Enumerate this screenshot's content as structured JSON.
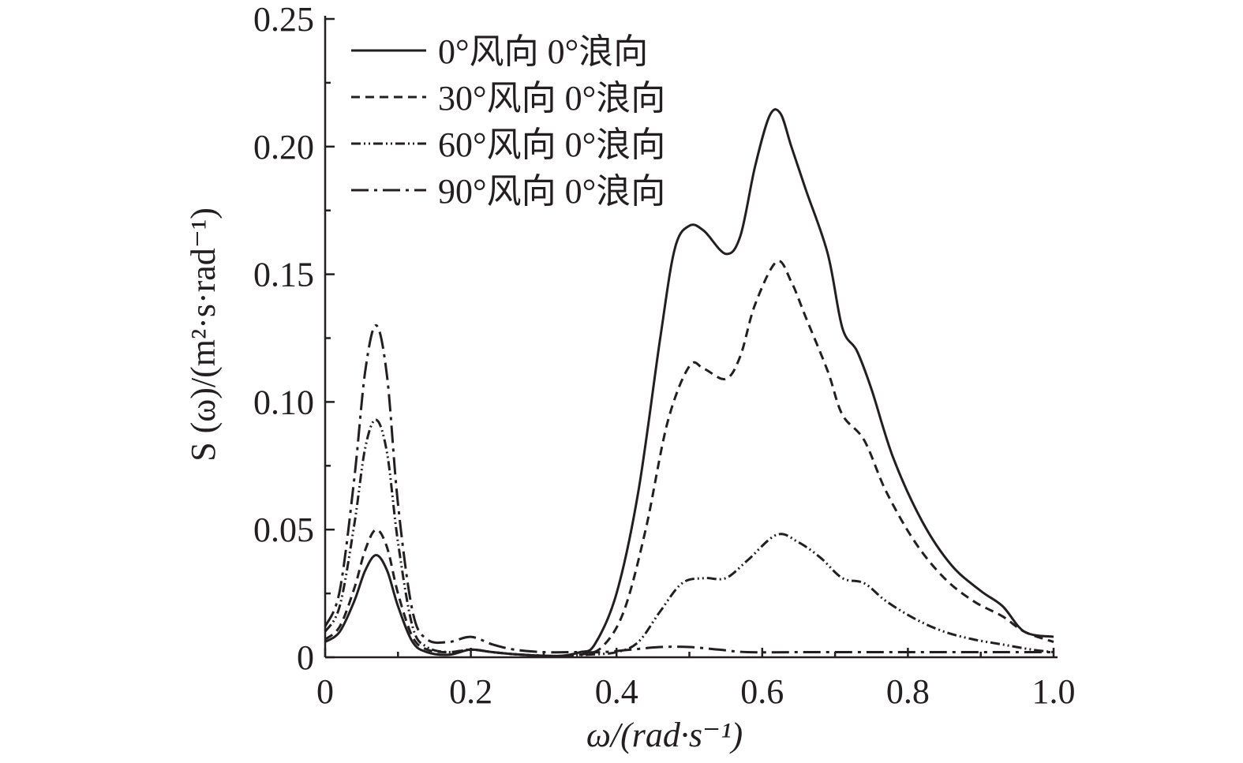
{
  "chart_data": {
    "type": "line",
    "xlabel": "ω/(rad·s⁻¹)",
    "ylabel": "S (ω)/(m²·s·rad⁻¹)",
    "xlim": [
      0,
      1.0
    ],
    "ylim": [
      0,
      0.25
    ],
    "x_ticks": [
      "0",
      "0.2",
      "0.4",
      "0.6",
      "0.8",
      "1.0"
    ],
    "y_ticks": [
      "0",
      "0.05",
      "0.10",
      "0.15",
      "0.20",
      "0.25"
    ],
    "grid": false,
    "legend_position": "top-left",
    "series": [
      {
        "name": "0°风向 0°浪向",
        "style": "solid",
        "points": [
          [
            0,
            0.006
          ],
          [
            0.02,
            0.01
          ],
          [
            0.04,
            0.022
          ],
          [
            0.055,
            0.034
          ],
          [
            0.07,
            0.04
          ],
          [
            0.085,
            0.034
          ],
          [
            0.1,
            0.02
          ],
          [
            0.12,
            0.006
          ],
          [
            0.14,
            0.002
          ],
          [
            0.17,
            0.001
          ],
          [
            0.2,
            0.003
          ],
          [
            0.23,
            0.002
          ],
          [
            0.27,
            0.001
          ],
          [
            0.32,
            0.0005
          ],
          [
            0.35,
            0.002
          ],
          [
            0.37,
            0.005
          ],
          [
            0.4,
            0.025
          ],
          [
            0.43,
            0.065
          ],
          [
            0.46,
            0.125
          ],
          [
            0.48,
            0.16
          ],
          [
            0.5,
            0.169
          ],
          [
            0.52,
            0.167
          ],
          [
            0.55,
            0.158
          ],
          [
            0.57,
            0.165
          ],
          [
            0.59,
            0.192
          ],
          [
            0.61,
            0.212
          ],
          [
            0.625,
            0.213
          ],
          [
            0.64,
            0.2
          ],
          [
            0.66,
            0.183
          ],
          [
            0.69,
            0.158
          ],
          [
            0.71,
            0.129
          ],
          [
            0.73,
            0.12
          ],
          [
            0.75,
            0.105
          ],
          [
            0.78,
            0.078
          ],
          [
            0.82,
            0.053
          ],
          [
            0.86,
            0.036
          ],
          [
            0.9,
            0.026
          ],
          [
            0.93,
            0.02
          ],
          [
            0.96,
            0.01
          ],
          [
            1.0,
            0.008
          ]
        ]
      },
      {
        "name": "30°风向 0°浪向",
        "style": "dashed",
        "points": [
          [
            0,
            0.007
          ],
          [
            0.02,
            0.012
          ],
          [
            0.04,
            0.027
          ],
          [
            0.055,
            0.042
          ],
          [
            0.07,
            0.05
          ],
          [
            0.085,
            0.043
          ],
          [
            0.1,
            0.025
          ],
          [
            0.12,
            0.008
          ],
          [
            0.14,
            0.003
          ],
          [
            0.17,
            0.002
          ],
          [
            0.2,
            0.003
          ],
          [
            0.23,
            0.002
          ],
          [
            0.27,
            0.001
          ],
          [
            0.32,
            0.0005
          ],
          [
            0.35,
            0.001
          ],
          [
            0.38,
            0.004
          ],
          [
            0.41,
            0.018
          ],
          [
            0.44,
            0.05
          ],
          [
            0.47,
            0.092
          ],
          [
            0.5,
            0.114
          ],
          [
            0.52,
            0.113
          ],
          [
            0.55,
            0.109
          ],
          [
            0.57,
            0.118
          ],
          [
            0.59,
            0.138
          ],
          [
            0.62,
            0.155
          ],
          [
            0.64,
            0.147
          ],
          [
            0.66,
            0.133
          ],
          [
            0.69,
            0.112
          ],
          [
            0.71,
            0.095
          ],
          [
            0.74,
            0.085
          ],
          [
            0.77,
            0.065
          ],
          [
            0.81,
            0.045
          ],
          [
            0.85,
            0.031
          ],
          [
            0.89,
            0.022
          ],
          [
            0.93,
            0.016
          ],
          [
            0.96,
            0.01
          ],
          [
            1.0,
            0.006
          ]
        ]
      },
      {
        "name": "60°风向 0°浪向",
        "style": "dash-dot-dot",
        "points": [
          [
            0,
            0.01
          ],
          [
            0.02,
            0.02
          ],
          [
            0.04,
            0.052
          ],
          [
            0.055,
            0.082
          ],
          [
            0.07,
            0.093
          ],
          [
            0.085,
            0.08
          ],
          [
            0.1,
            0.045
          ],
          [
            0.12,
            0.012
          ],
          [
            0.14,
            0.004
          ],
          [
            0.17,
            0.002
          ],
          [
            0.2,
            0.003
          ],
          [
            0.23,
            0.002
          ],
          [
            0.27,
            0.001
          ],
          [
            0.32,
            0.0005
          ],
          [
            0.36,
            0.001
          ],
          [
            0.4,
            0.002
          ],
          [
            0.43,
            0.006
          ],
          [
            0.46,
            0.018
          ],
          [
            0.49,
            0.029
          ],
          [
            0.52,
            0.031
          ],
          [
            0.55,
            0.031
          ],
          [
            0.58,
            0.038
          ],
          [
            0.62,
            0.048
          ],
          [
            0.65,
            0.045
          ],
          [
            0.68,
            0.039
          ],
          [
            0.71,
            0.031
          ],
          [
            0.74,
            0.029
          ],
          [
            0.77,
            0.022
          ],
          [
            0.81,
            0.015
          ],
          [
            0.85,
            0.01
          ],
          [
            0.89,
            0.007
          ],
          [
            0.93,
            0.005
          ],
          [
            0.97,
            0.003
          ],
          [
            1.0,
            0.002
          ]
        ]
      },
      {
        "name": "90°风向 0°浪向",
        "style": "dash-dot",
        "points": [
          [
            0,
            0.012
          ],
          [
            0.02,
            0.026
          ],
          [
            0.04,
            0.07
          ],
          [
            0.055,
            0.112
          ],
          [
            0.07,
            0.13
          ],
          [
            0.085,
            0.11
          ],
          [
            0.1,
            0.06
          ],
          [
            0.12,
            0.018
          ],
          [
            0.14,
            0.007
          ],
          [
            0.17,
            0.006
          ],
          [
            0.2,
            0.008
          ],
          [
            0.23,
            0.005
          ],
          [
            0.26,
            0.003
          ],
          [
            0.3,
            0.002
          ],
          [
            0.34,
            0.002
          ],
          [
            0.38,
            0.002
          ],
          [
            0.42,
            0.003
          ],
          [
            0.46,
            0.004
          ],
          [
            0.5,
            0.004
          ],
          [
            0.54,
            0.003
          ],
          [
            0.58,
            0.002
          ],
          [
            0.65,
            0.002
          ],
          [
            0.75,
            0.002
          ],
          [
            0.85,
            0.002
          ],
          [
            0.95,
            0.002
          ],
          [
            1.0,
            0.002
          ]
        ]
      }
    ]
  }
}
